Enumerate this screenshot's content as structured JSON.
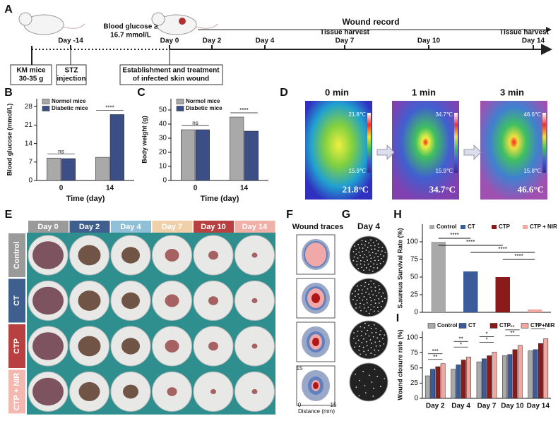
{
  "panel_a": {
    "letter": "A",
    "wound_record": "Wound record",
    "timeline": [
      "Day -14",
      "Day 0",
      "Day 2",
      "Day 4",
      "Day 7",
      "Day 10",
      "Day 14"
    ],
    "glucose_note": [
      "Blood glucose ≥",
      "16.7 mmol/L"
    ],
    "harvest": [
      "Tissue harvest",
      "Tissue harvest"
    ],
    "box_mice": [
      "KM mice",
      "30-35 g"
    ],
    "box_stz": [
      "STZ",
      "injection"
    ],
    "box_wound": [
      "Establishment and treatment",
      "of infected skin wound"
    ]
  },
  "panel_d": {
    "letter": "D",
    "times": [
      "0 min",
      "1 min",
      "3 min"
    ],
    "temps": [
      "21.8°C",
      "34.7°C",
      "46.6°C"
    ],
    "scale_max": [
      "21.8℃",
      "34.7℃",
      "46.6℃"
    ],
    "scale_min": [
      "15.9℃",
      "15.9℃",
      "15.8℃"
    ]
  },
  "panel_e": {
    "letter": "E",
    "columns": [
      "Day 0",
      "Day 2",
      "Day 4",
      "Day 7",
      "Day 10",
      "Day 14"
    ],
    "rows": [
      "Control",
      "CT",
      "CTP",
      "CTP + NIR"
    ]
  },
  "panel_f": {
    "letter": "F",
    "title": "Wound traces",
    "axis_max_y": "15",
    "axis_min": "0",
    "axis_max_x": "15",
    "axis_label": "Distance (mm)"
  },
  "panel_g": {
    "letter": "G",
    "title": "Day 4"
  },
  "chart_data": [
    {
      "type": "bar",
      "panel": "B",
      "ylabel": "Blood glucose (mmol/L)",
      "xlabel": "Time (day)",
      "categories": [
        "0",
        "14"
      ],
      "series": [
        {
          "name": "Normol mice",
          "color": "#a9a9a9",
          "values": [
            8.5,
            8.8
          ]
        },
        {
          "name": "Diabetic mice",
          "color": "#3b4f86",
          "values": [
            8.3,
            25
          ]
        }
      ],
      "ylim": [
        0,
        31
      ],
      "yticks": [
        0,
        7,
        14,
        21,
        28
      ],
      "legend": "upper left",
      "annotations": [
        "ns",
        "****"
      ]
    },
    {
      "type": "bar",
      "panel": "C",
      "ylabel": "Body weight (g)",
      "xlabel": "Time (day)",
      "categories": [
        "0",
        "14"
      ],
      "series": [
        {
          "name": "Normol mice",
          "color": "#a9a9a9",
          "values": [
            36,
            45
          ]
        },
        {
          "name": "Diabetic mice",
          "color": "#3b4f86",
          "values": [
            36,
            35
          ]
        }
      ],
      "ylim": [
        0,
        58
      ],
      "yticks": [
        0,
        10,
        20,
        30,
        40,
        50
      ],
      "legend": "upper left",
      "annotations": [
        "ns",
        "****"
      ]
    },
    {
      "type": "bar",
      "panel": "H",
      "ylabel": "S.aureus Survival Rate (%)",
      "categories": [
        "Control",
        "CT",
        "CTP",
        "CTP + NIR"
      ],
      "values": [
        100,
        58,
        50,
        4
      ],
      "colors": [
        "#a9a9a9",
        "#3b5b9a",
        "#8b1a1a",
        "#f0a8a0"
      ],
      "ylim": [
        0,
        125
      ],
      "yticks": [
        0,
        25,
        50,
        75,
        100
      ],
      "xticklabels": false,
      "legend": "top",
      "annotations": [
        "****",
        "****",
        "****",
        "****"
      ]
    },
    {
      "type": "bar",
      "panel": "I",
      "ylabel": "Wound closure rate (%)",
      "categories": [
        "Day 2",
        "Day 4",
        "Day 7",
        "Day 10",
        "Day 14"
      ],
      "series": [
        {
          "name": "Control",
          "color": "#a9a9a9",
          "values": [
            37,
            48,
            60,
            70,
            78
          ]
        },
        {
          "name": "CT",
          "color": "#3b5b9a",
          "values": [
            48,
            55,
            65,
            72,
            80
          ]
        },
        {
          "name": "CTP",
          "color": "#8b1a1a",
          "values": [
            52,
            63,
            70,
            80,
            90
          ]
        },
        {
          "name": "CTP+NIR",
          "color": "#f0a8a0",
          "values": [
            57,
            68,
            76,
            87,
            98
          ]
        }
      ],
      "ylim": [
        0,
        110
      ],
      "yticks": [
        0,
        25,
        50,
        75,
        100
      ],
      "legend": "top",
      "annotations": [
        "**",
        "***",
        "*",
        "**",
        "*",
        "*",
        "**",
        "**",
        "**"
      ]
    }
  ]
}
